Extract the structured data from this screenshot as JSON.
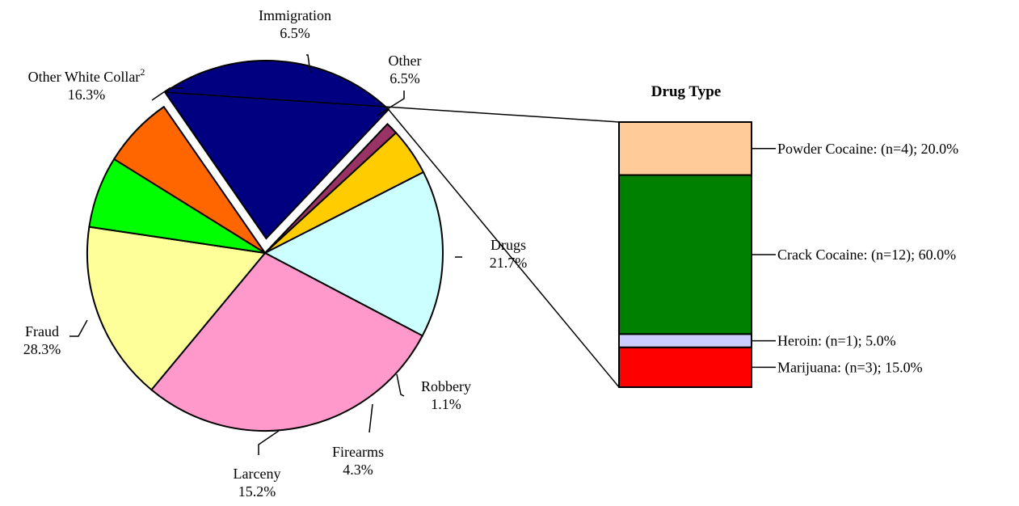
{
  "chart_data": [
    {
      "type": "pie",
      "title": "",
      "slices": [
        {
          "label": "Drugs",
          "value": 21.7,
          "value_label": "21.7%",
          "color": "#000080",
          "exploded": true
        },
        {
          "label": "Robbery",
          "value": 1.1,
          "value_label": "1.1%",
          "color": "#993366"
        },
        {
          "label": "Firearms",
          "value": 4.3,
          "value_label": "4.3%",
          "color": "#FFCC00"
        },
        {
          "label": "Larceny",
          "value": 15.2,
          "value_label": "15.2%",
          "color": "#CCFFFF"
        },
        {
          "label": "Fraud",
          "value": 28.3,
          "value_label": "28.3%",
          "color": "#FF99CC"
        },
        {
          "label": "Other White Collar",
          "label_sup": "2",
          "value": 16.3,
          "value_label": "16.3%",
          "color": "#FFFF99"
        },
        {
          "label": "Immigration",
          "value": 6.5,
          "value_label": "6.5%",
          "color": "#00FF00"
        },
        {
          "label": "Other",
          "value": 6.5,
          "value_label": "6.5%",
          "color": "#FF6600"
        }
      ]
    },
    {
      "type": "bar",
      "stacked": true,
      "title": "Drug Type",
      "segments": [
        {
          "label": "Powder Cocaine",
          "n_label": "(n=4)",
          "value": 20.0,
          "value_label": "20.0%",
          "color": "#FFCC99"
        },
        {
          "label": "Crack Cocaine",
          "n_label": "(n=12)",
          "value": 60.0,
          "value_label": "60.0%",
          "color": "#008000"
        },
        {
          "label": "Heroin",
          "n_label": "(n=1)",
          "value": 5.0,
          "value_label": "5.0%",
          "color": "#CCCCFF"
        },
        {
          "label": "Marijuana",
          "n_label": "(n=3)",
          "value": 15.0,
          "value_label": "15.0%",
          "color": "#FF0000"
        }
      ]
    }
  ]
}
